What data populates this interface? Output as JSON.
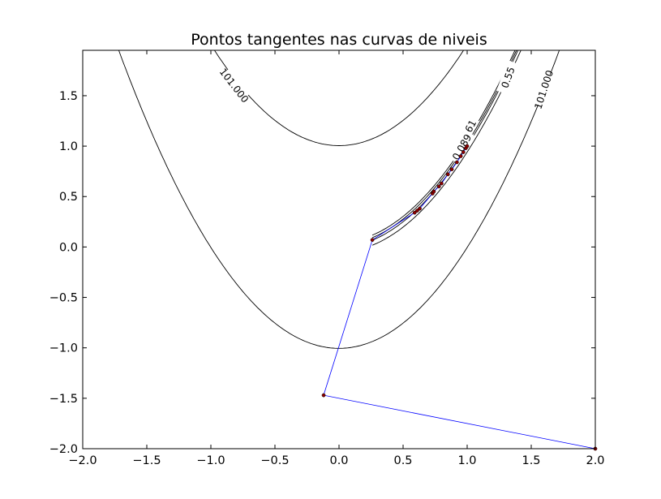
{
  "chart_data": {
    "type": "line",
    "title": "Pontos tangentes nas curvas de niveis",
    "xlabel": "",
    "ylabel": "",
    "xlim": [
      -2.0,
      2.0
    ],
    "ylim": [
      -2.0,
      1.95
    ],
    "xticks": [
      -2.0,
      -1.5,
      -1.0,
      -0.5,
      0.0,
      0.5,
      1.0,
      1.5,
      2.0
    ],
    "xtick_labels": [
      "−2.0",
      "−1.5",
      "−1.0",
      "−0.5",
      "0.0",
      "0.5",
      "1.0",
      "1.5",
      "2.0"
    ],
    "yticks": [
      -2.0,
      -1.5,
      -1.0,
      -0.5,
      0.0,
      0.5,
      1.0,
      1.5
    ],
    "ytick_labels": [
      "−2.0",
      "−1.5",
      "−1.0",
      "−0.5",
      "0.0",
      "0.5",
      "1.0",
      "1.5"
    ],
    "grid": false,
    "contours": [
      {
        "label": "101.000",
        "level": 101.0
      },
      {
        "label": "0.55",
        "level": 0.55
      },
      {
        "label": "0.161",
        "level": 0.161
      },
      {
        "label": "0.089",
        "level": 0.089
      }
    ],
    "series": [
      {
        "x": [
          2.0,
          -0.12,
          0.26,
          0.59,
          0.61,
          0.63,
          0.73,
          0.74,
          0.78,
          0.8,
          0.85,
          0.88,
          0.92,
          0.95,
          0.97,
          0.99,
          1.0
        ],
        "y": [
          -2.0,
          -1.47,
          0.07,
          0.34,
          0.36,
          0.38,
          0.53,
          0.55,
          0.6,
          0.63,
          0.72,
          0.77,
          0.84,
          0.9,
          0.94,
          0.98,
          1.0
        ],
        "color": "#0000ff"
      }
    ]
  }
}
